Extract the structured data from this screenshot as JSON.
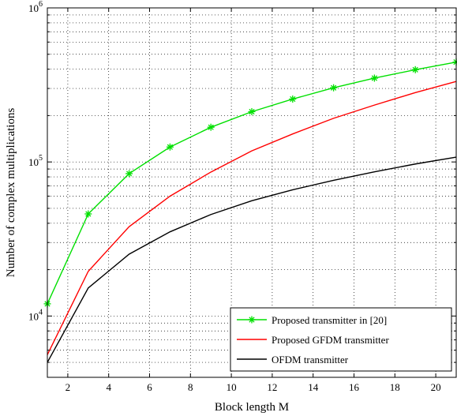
{
  "chart_data": {
    "type": "line",
    "title": "",
    "xlabel": "Block length M",
    "ylabel": "Number of complex multiplications",
    "xlim": [
      1,
      21
    ],
    "ylim": [
      4000,
      1000000
    ],
    "yscale": "log",
    "grid": true,
    "legend_position": "bottom-right",
    "x_ticks": [
      2,
      4,
      6,
      8,
      10,
      12,
      14,
      16,
      18,
      20
    ],
    "x_tick_labels": [
      "2",
      "4",
      "6",
      "8",
      "10",
      "12",
      "14",
      "16",
      "18",
      "20"
    ],
    "y_ticks": [
      {
        "value": 10000,
        "base": "10",
        "exp": "4"
      },
      {
        "value": 100000,
        "base": "10",
        "exp": "5"
      },
      {
        "value": 1000000,
        "base": "10",
        "exp": "6"
      }
    ],
    "series": [
      {
        "name": "Proposed transmitter in [20]",
        "color": "#00e000",
        "marker": "asterisk",
        "x": [
          1,
          3,
          5,
          7,
          9,
          11,
          13,
          15,
          17,
          19,
          21
        ],
        "values": [
          12000,
          46000,
          84000,
          125000,
          168000,
          212000,
          256000,
          303000,
          350000,
          397000,
          445000
        ]
      },
      {
        "name": "Proposed GFDM transmitter",
        "color": "#ff0000",
        "marker": "none",
        "x": [
          1,
          3,
          5,
          7,
          9,
          11,
          13,
          15,
          17,
          19,
          21
        ],
        "values": [
          5600,
          19500,
          38000,
          60000,
          86000,
          118000,
          152000,
          192000,
          234000,
          282000,
          333000
        ]
      },
      {
        "name": "OFDM transmitter",
        "color": "#000000",
        "marker": "none",
        "x": [
          1,
          3,
          5,
          7,
          9,
          11,
          13,
          15,
          17,
          19,
          21
        ],
        "values": [
          5000,
          15200,
          25200,
          35200,
          45600,
          56000,
          66000,
          76000,
          86300,
          97000,
          107500
        ]
      }
    ]
  }
}
